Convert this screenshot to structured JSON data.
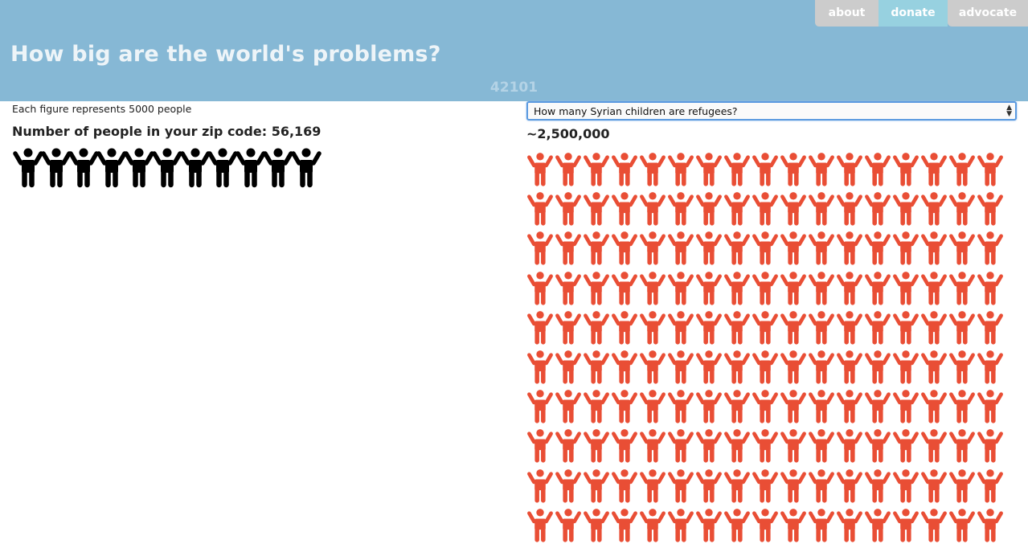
{
  "nav": {
    "about_label": "about",
    "donate_label": "donate",
    "advocate_label": "advocate"
  },
  "header": {
    "title": "How big are the world's problems?",
    "zip_code": "42101"
  },
  "left": {
    "scale_note": "Each figure represents 5000 people",
    "zip_population_text": "Number of people in your zip code: 56,169",
    "figure_count": 11,
    "figure_color": "#000000",
    "figure_icon": "person-arms-raised-icon"
  },
  "right": {
    "question_selected": "How many Syrian children are refugees?",
    "answer_text": "~2,500,000",
    "figure_columns": 17,
    "figure_rows_visible": 10,
    "figure_color": "#e94e35",
    "figure_icon": "person-arms-raised-icon"
  },
  "colors": {
    "header_bg": "#86b8d5",
    "nav_gray": "#cccccc",
    "nav_donate": "#97d1e0"
  }
}
